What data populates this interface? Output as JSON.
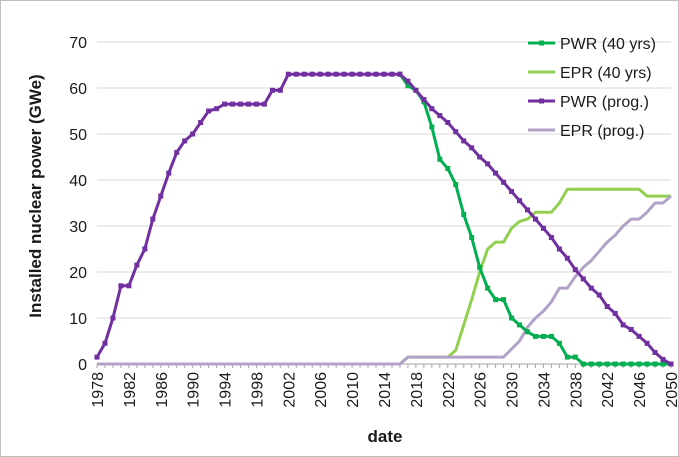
{
  "chart_data": {
    "type": "line",
    "xlabel": "date",
    "ylabel": "Installed nuclear power (GWe)",
    "xlim": [
      1978,
      2050
    ],
    "ylim": [
      0,
      70
    ],
    "x_ticks": [
      1978,
      1982,
      1986,
      1990,
      1994,
      1998,
      2002,
      2006,
      2010,
      2014,
      2018,
      2022,
      2026,
      2030,
      2034,
      2038,
      2042,
      2046,
      2050
    ],
    "y_ticks": [
      0,
      10,
      20,
      30,
      40,
      50,
      60,
      70
    ],
    "grid": "horizontal",
    "legend": "top-right",
    "series": [
      {
        "name": "PWR (40 yrs)",
        "color": "#00b050",
        "markers": true,
        "points": [
          [
            2016,
            63
          ],
          [
            2017,
            60.5
          ],
          [
            2018,
            59.5
          ],
          [
            2019,
            57
          ],
          [
            2020,
            51.5
          ],
          [
            2021,
            44.5
          ],
          [
            2022,
            42.5
          ],
          [
            2023,
            39
          ],
          [
            2024,
            32.5
          ],
          [
            2025,
            27.5
          ],
          [
            2026,
            21
          ],
          [
            2027,
            16.5
          ],
          [
            2028,
            14
          ],
          [
            2029,
            14
          ],
          [
            2030,
            10
          ],
          [
            2031,
            8.5
          ],
          [
            2032,
            7
          ],
          [
            2033,
            6
          ],
          [
            2034,
            6
          ],
          [
            2035,
            6
          ],
          [
            2036,
            4.5
          ],
          [
            2037,
            1.5
          ],
          [
            2038,
            1.5
          ],
          [
            2039,
            0
          ],
          [
            2040,
            0
          ],
          [
            2041,
            0
          ],
          [
            2042,
            0
          ],
          [
            2043,
            0
          ],
          [
            2044,
            0
          ],
          [
            2045,
            0
          ],
          [
            2046,
            0
          ],
          [
            2047,
            0
          ],
          [
            2048,
            0
          ],
          [
            2049,
            0
          ],
          [
            2050,
            0
          ]
        ]
      },
      {
        "name": "EPR (40 yrs)",
        "color": "#92d050",
        "markers": false,
        "points": [
          [
            1978,
            0
          ],
          [
            2016,
            0
          ],
          [
            2017,
            1.5
          ],
          [
            2022,
            1.5
          ],
          [
            2023,
            3
          ],
          [
            2024,
            8.5
          ],
          [
            2025,
            14
          ],
          [
            2026,
            20
          ],
          [
            2027,
            25
          ],
          [
            2028,
            26.5
          ],
          [
            2029,
            26.5
          ],
          [
            2030,
            29.5
          ],
          [
            2031,
            31
          ],
          [
            2032,
            31.5
          ],
          [
            2033,
            33
          ],
          [
            2034,
            33
          ],
          [
            2035,
            33
          ],
          [
            2036,
            35
          ],
          [
            2037,
            38
          ],
          [
            2046,
            38
          ],
          [
            2047,
            36.5
          ],
          [
            2050,
            36.5
          ]
        ]
      },
      {
        "name": "PWR (prog.)",
        "color": "#7030a0",
        "markers": true,
        "points": [
          [
            1978,
            1.5
          ],
          [
            1979,
            4.5
          ],
          [
            1980,
            10
          ],
          [
            1981,
            17
          ],
          [
            1982,
            17
          ],
          [
            1983,
            21.5
          ],
          [
            1984,
            25
          ],
          [
            1985,
            31.5
          ],
          [
            1986,
            36.5
          ],
          [
            1987,
            41.5
          ],
          [
            1988,
            46
          ],
          [
            1989,
            48.5
          ],
          [
            1990,
            50
          ],
          [
            1991,
            52.5
          ],
          [
            1992,
            55
          ],
          [
            1993,
            55.5
          ],
          [
            1994,
            56.5
          ],
          [
            1995,
            56.5
          ],
          [
            1996,
            56.5
          ],
          [
            1997,
            56.5
          ],
          [
            1998,
            56.5
          ],
          [
            1999,
            56.5
          ],
          [
            2000,
            59.5
          ],
          [
            2001,
            59.5
          ],
          [
            2002,
            63
          ],
          [
            2003,
            63
          ],
          [
            2004,
            63
          ],
          [
            2005,
            63
          ],
          [
            2006,
            63
          ],
          [
            2007,
            63
          ],
          [
            2008,
            63
          ],
          [
            2009,
            63
          ],
          [
            2010,
            63
          ],
          [
            2011,
            63
          ],
          [
            2012,
            63
          ],
          [
            2013,
            63
          ],
          [
            2014,
            63
          ],
          [
            2015,
            63
          ],
          [
            2016,
            63
          ],
          [
            2017,
            61.5
          ],
          [
            2018,
            59.5
          ],
          [
            2019,
            57.5
          ],
          [
            2020,
            55.5
          ],
          [
            2021,
            54
          ],
          [
            2022,
            52.5
          ],
          [
            2023,
            50.5
          ],
          [
            2024,
            48.5
          ],
          [
            2025,
            47
          ],
          [
            2026,
            45
          ],
          [
            2027,
            43.5
          ],
          [
            2028,
            41.5
          ],
          [
            2029,
            39.5
          ],
          [
            2030,
            37.5
          ],
          [
            2031,
            35.5
          ],
          [
            2032,
            33.5
          ],
          [
            2033,
            31.5
          ],
          [
            2034,
            29.5
          ],
          [
            2035,
            27.5
          ],
          [
            2036,
            25
          ],
          [
            2037,
            23
          ],
          [
            2038,
            20.5
          ],
          [
            2039,
            18.5
          ],
          [
            2040,
            16.5
          ],
          [
            2041,
            15
          ],
          [
            2042,
            12.5
          ],
          [
            2043,
            11
          ],
          [
            2044,
            8.5
          ],
          [
            2045,
            7.5
          ],
          [
            2046,
            6
          ],
          [
            2047,
            4.5
          ],
          [
            2048,
            2.5
          ],
          [
            2049,
            1
          ],
          [
            2050,
            0
          ]
        ]
      },
      {
        "name": "EPR (prog.)",
        "color": "#b3a2c7",
        "markers": false,
        "points": [
          [
            1978,
            0
          ],
          [
            2016,
            0
          ],
          [
            2017,
            1.5
          ],
          [
            2022,
            1.5
          ],
          [
            2029,
            1.5
          ],
          [
            2031,
            5
          ],
          [
            2032,
            8
          ],
          [
            2033,
            10
          ],
          [
            2034,
            11.5
          ],
          [
            2035,
            13.5
          ],
          [
            2036,
            16.5
          ],
          [
            2037,
            16.5
          ],
          [
            2038,
            19
          ],
          [
            2039,
            21
          ],
          [
            2040,
            22.5
          ],
          [
            2041,
            24.5
          ],
          [
            2042,
            26.5
          ],
          [
            2043,
            28
          ],
          [
            2044,
            30
          ],
          [
            2045,
            31.5
          ],
          [
            2046,
            31.5
          ],
          [
            2047,
            33
          ],
          [
            2048,
            35
          ],
          [
            2049,
            35
          ],
          [
            2050,
            36.5
          ]
        ]
      }
    ]
  }
}
